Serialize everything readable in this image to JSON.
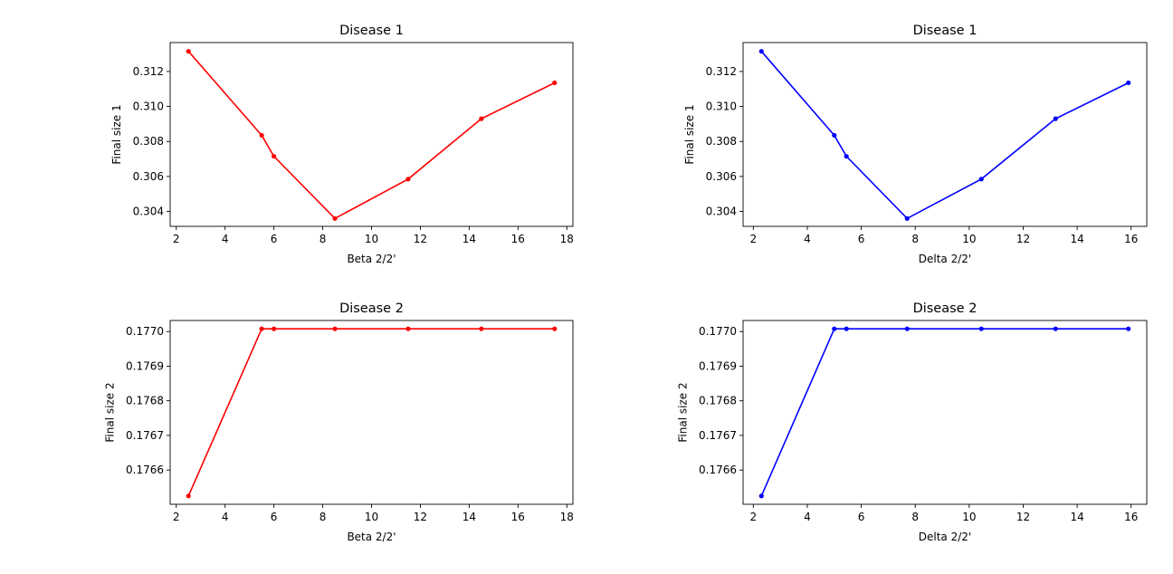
{
  "chart_data": [
    {
      "type": "line",
      "title": "Disease 1",
      "xlabel": "Beta 2/2'",
      "ylabel": "Final size 1",
      "color": "#ff0000",
      "marker": "point",
      "x": [
        2.5,
        5.5,
        6.0,
        8.5,
        11.5,
        14.5,
        17.5
      ],
      "y": [
        0.31315,
        0.30835,
        0.30715,
        0.3036,
        0.30585,
        0.3093,
        0.31135
      ],
      "xlim": [
        1.75,
        18.25
      ],
      "ylim": [
        0.30315,
        0.31365
      ],
      "xticks": [
        2,
        4,
        6,
        8,
        10,
        12,
        14,
        16,
        18
      ],
      "xtick_labels": [
        "2",
        "4",
        "6",
        "8",
        "10",
        "12",
        "14",
        "16",
        "18"
      ],
      "yticks": [
        0.304,
        0.306,
        0.308,
        0.31,
        0.312
      ],
      "ytick_labels": [
        "0.304",
        "0.306",
        "0.308",
        "0.310",
        "0.312"
      ],
      "grid": false,
      "legend": "none"
    },
    {
      "type": "line",
      "title": "Disease 1",
      "xlabel": "Delta 2/2'",
      "ylabel": "Final size 1",
      "color": "#0000ff",
      "marker": "point",
      "x": [
        2.3,
        5.0,
        5.45,
        7.7,
        10.45,
        13.2,
        15.9
      ],
      "y": [
        0.31315,
        0.30835,
        0.30715,
        0.3036,
        0.30585,
        0.3093,
        0.31135
      ],
      "xlim": [
        1.62,
        16.58
      ],
      "ylim": [
        0.30315,
        0.31365
      ],
      "xticks": [
        2,
        4,
        6,
        8,
        10,
        12,
        14,
        16
      ],
      "xtick_labels": [
        "2",
        "4",
        "6",
        "8",
        "10",
        "12",
        "14",
        "16"
      ],
      "yticks": [
        0.304,
        0.306,
        0.308,
        0.31,
        0.312
      ],
      "ytick_labels": [
        "0.304",
        "0.306",
        "0.308",
        "0.310",
        "0.312"
      ],
      "grid": false,
      "legend": "none"
    },
    {
      "type": "line",
      "title": "Disease 2",
      "xlabel": "Beta 2/2'",
      "ylabel": "Final size 2",
      "color": "#ff0000",
      "marker": "point",
      "x": [
        2.5,
        5.5,
        6.0,
        8.5,
        11.5,
        14.5,
        17.5
      ],
      "y": [
        0.176525,
        0.177008,
        0.177008,
        0.177008,
        0.177008,
        0.177008,
        0.177008
      ],
      "xlim": [
        1.75,
        18.25
      ],
      "ylim": [
        0.176501,
        0.177032
      ],
      "xticks": [
        2,
        4,
        6,
        8,
        10,
        12,
        14,
        16,
        18
      ],
      "xtick_labels": [
        "2",
        "4",
        "6",
        "8",
        "10",
        "12",
        "14",
        "16",
        "18"
      ],
      "yticks": [
        0.1766,
        0.1767,
        0.1768,
        0.1769,
        0.177
      ],
      "ytick_labels": [
        "0.1766",
        "0.1767",
        "0.1768",
        "0.1769",
        "0.1770"
      ],
      "grid": false,
      "legend": "none"
    },
    {
      "type": "line",
      "title": "Disease 2",
      "xlabel": "Delta 2/2'",
      "ylabel": "Final size 2",
      "color": "#0000ff",
      "marker": "point",
      "x": [
        2.3,
        5.0,
        5.45,
        7.7,
        10.45,
        13.2,
        15.9
      ],
      "y": [
        0.176525,
        0.177008,
        0.177008,
        0.177008,
        0.177008,
        0.177008,
        0.177008
      ],
      "xlim": [
        1.62,
        16.58
      ],
      "ylim": [
        0.176501,
        0.177032
      ],
      "xticks": [
        2,
        4,
        6,
        8,
        10,
        12,
        14,
        16
      ],
      "xtick_labels": [
        "2",
        "4",
        "6",
        "8",
        "10",
        "12",
        "14",
        "16"
      ],
      "yticks": [
        0.1766,
        0.1767,
        0.1768,
        0.1769,
        0.177
      ],
      "ytick_labels": [
        "0.1766",
        "0.1767",
        "0.1768",
        "0.1769",
        "0.1770"
      ],
      "grid": false,
      "legend": "none"
    }
  ]
}
